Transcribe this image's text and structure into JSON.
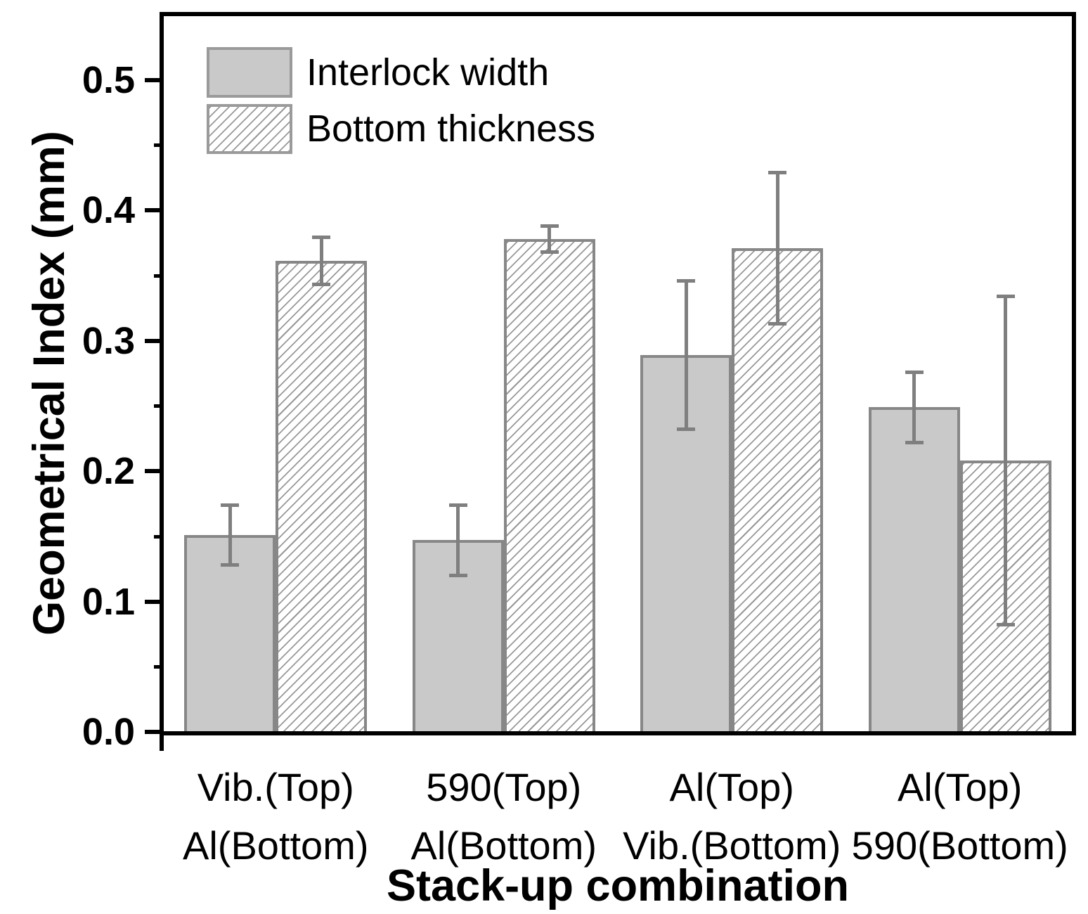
{
  "chart_data": {
    "type": "bar",
    "title": "",
    "xlabel": "Stack-up combination",
    "ylabel": "Geometrical Index (mm)",
    "ylim": [
      0,
      0.55
    ],
    "yticks": [
      "0.0",
      "0.1",
      "0.2",
      "0.3",
      "0.4",
      "0.5"
    ],
    "ytick_values": [
      0.0,
      0.1,
      0.2,
      0.3,
      0.4,
      0.5
    ],
    "minor_ytick_values": [
      0.05,
      0.15,
      0.25,
      0.35,
      0.45
    ],
    "grid": false,
    "legend_position": "top-left",
    "categories": [
      {
        "line1": "Vib.(Top)",
        "line2": "Al(Bottom)"
      },
      {
        "line1": "590(Top)",
        "line2": "Al(Bottom)"
      },
      {
        "line1": "Al(Top)",
        "line2": "Vib.(Bottom)"
      },
      {
        "line1": "Al(Top)",
        "line2": "590(Bottom)"
      }
    ],
    "series": [
      {
        "name": "Interlock width",
        "pattern": "solid-gray",
        "values": [
          0.151,
          0.147,
          0.289,
          0.249
        ],
        "errors": [
          0.023,
          0.027,
          0.057,
          0.027
        ]
      },
      {
        "name": "Bottom thickness",
        "pattern": "diagonal-hatch",
        "values": [
          0.361,
          0.378,
          0.371,
          0.208
        ],
        "errors": [
          0.018,
          0.01,
          0.058,
          0.126
        ]
      }
    ],
    "colors": {
      "bar_fill": "#c9c9c9",
      "bar_edge": "#878787",
      "hatch_line": "#989898",
      "error_bar": "#7f7f7f",
      "axis": "#000000",
      "text": "#000000",
      "background": "#ffffff"
    }
  }
}
